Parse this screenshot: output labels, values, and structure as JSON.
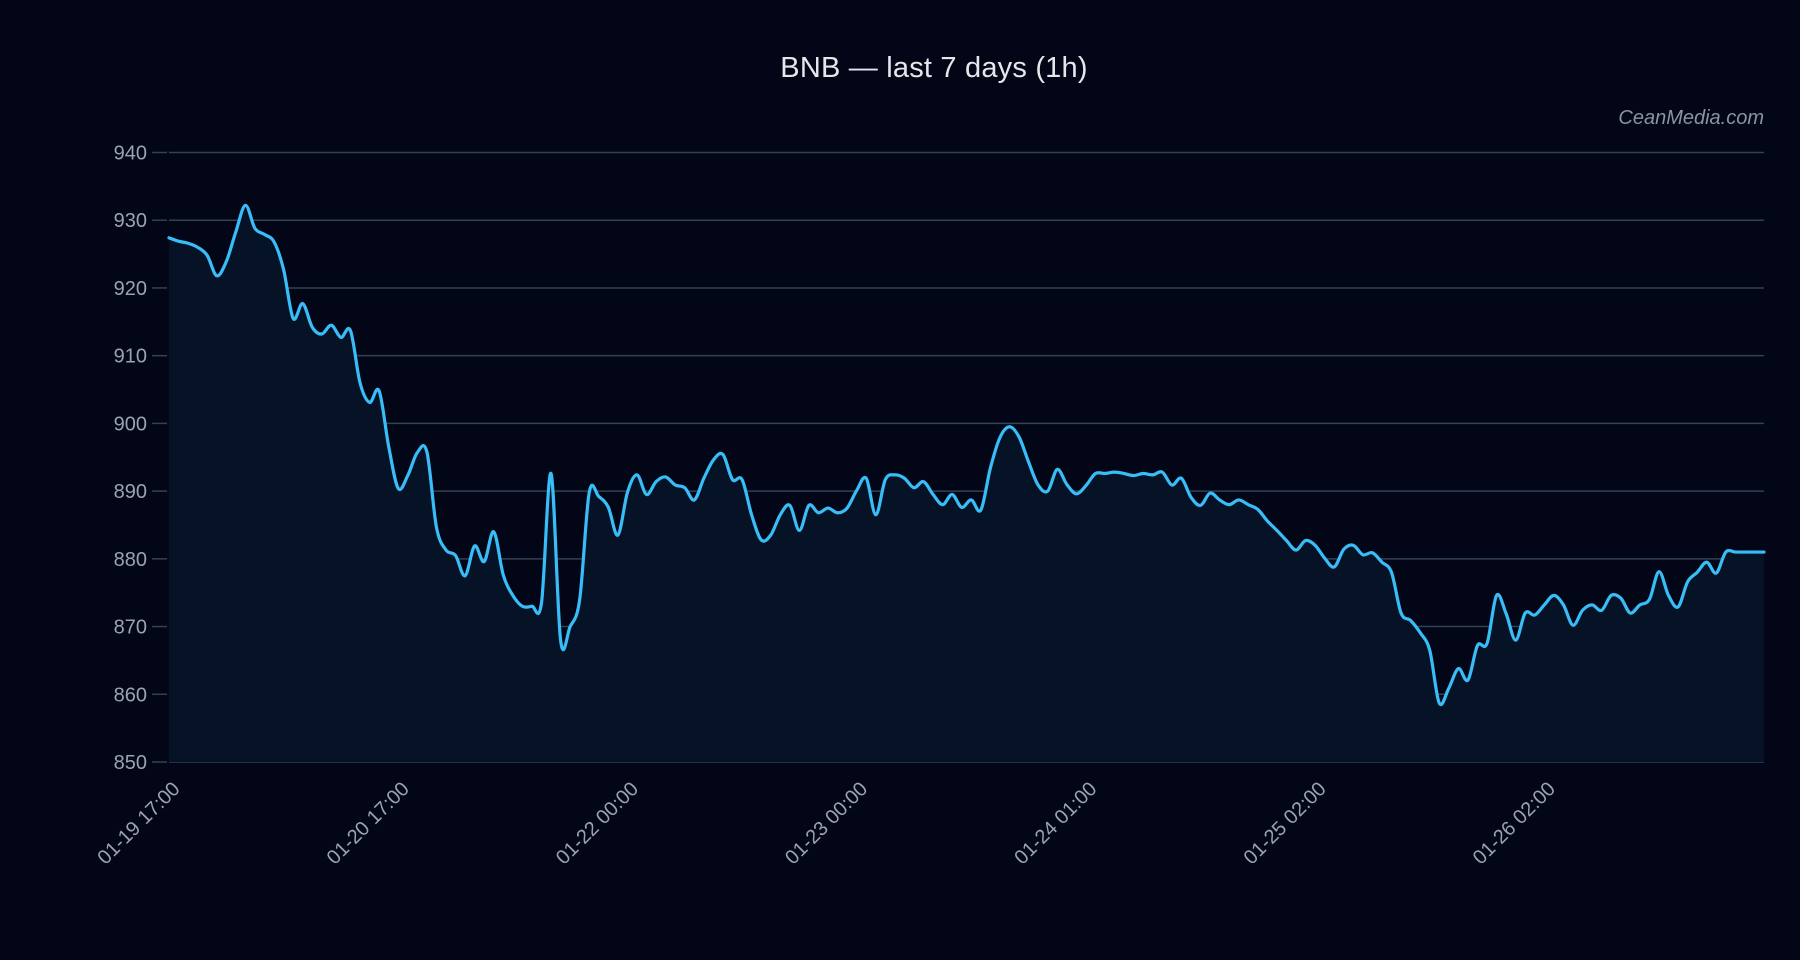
{
  "header": {
    "title": "BNB — last 7 days (1h)",
    "watermark": "CeanMedia.com"
  },
  "colors": {
    "background": "#020617",
    "plot_fill": "#061326",
    "line": "#38bdf8",
    "grid": "#334155",
    "tick_text": "#9ca3af",
    "title_text": "#e5e7eb"
  },
  "chart_data": {
    "type": "area",
    "title": "BNB — last 7 days (1h)",
    "xlabel": "",
    "ylabel": "",
    "ylim": [
      850,
      940
    ],
    "yticks": [
      850,
      860,
      870,
      880,
      890,
      900,
      910,
      920,
      930,
      940
    ],
    "grid": true,
    "legend": null,
    "x_tick_labels": [
      "01-19 17:00",
      "01-20 17:00",
      "01-22 00:00",
      "01-23 00:00",
      "01-24 01:00",
      "01-25 02:00",
      "01-26 02:00"
    ],
    "x_tick_indices": [
      0,
      24,
      48,
      72,
      96,
      120,
      144
    ],
    "n_points": 168,
    "series": [
      {
        "name": "BNB",
        "values": [
          927.4,
          926.9,
          926.6,
          926.0,
          924.8,
          921.8,
          923.9,
          928.3,
          932.2,
          928.8,
          927.9,
          926.8,
          922.7,
          915.5,
          917.7,
          914.2,
          913.2,
          914.5,
          912.7,
          913.7,
          906.0,
          903.1,
          904.8,
          896.6,
          890.4,
          892.3,
          895.7,
          895.8,
          884.7,
          881.3,
          880.5,
          877.5,
          881.9,
          879.6,
          884.0,
          877.6,
          874.6,
          873.0,
          873.0,
          873.5,
          892.6,
          868.0,
          870.0,
          874.0,
          889.8,
          889.2,
          887.6,
          883.5,
          889.8,
          892.4,
          889.5,
          891.4,
          892.1,
          890.9,
          890.5,
          888.7,
          891.9,
          894.6,
          895.4,
          891.7,
          891.7,
          886.5,
          882.8,
          883.5,
          886.5,
          887.9,
          884.2,
          887.9,
          886.8,
          887.5,
          886.8,
          887.5,
          890.1,
          891.9,
          886.5,
          891.7,
          892.4,
          891.9,
          890.5,
          891.4,
          889.5,
          888.0,
          889.5,
          887.6,
          888.7,
          887.2,
          893.4,
          897.9,
          899.5,
          898.0,
          894.3,
          890.9,
          890.0,
          893.2,
          891.0,
          889.6,
          890.8,
          892.6,
          892.6,
          892.8,
          892.6,
          892.3,
          892.6,
          892.4,
          892.8,
          890.9,
          891.9,
          889.1,
          887.9,
          889.7,
          888.7,
          888.0,
          888.7,
          888.0,
          887.3,
          885.6,
          884.2,
          882.7,
          881.3,
          882.7,
          882.0,
          880.1,
          878.8,
          881.4,
          882.0,
          880.6,
          880.9,
          879.5,
          878.0,
          872.0,
          870.9,
          869.1,
          866.5,
          858.7,
          860.9,
          863.8,
          862.1,
          867.2,
          867.5,
          874.6,
          871.9,
          868.0,
          872.0,
          871.7,
          873.2,
          874.6,
          873.2,
          870.2,
          872.4,
          873.2,
          872.4,
          874.6,
          874.2,
          872.0,
          873.2,
          874.0,
          878.1,
          874.6,
          872.9,
          876.6,
          878.0,
          879.5,
          877.9,
          881.0,
          881.0,
          881.0,
          881.0,
          881.0
        ]
      }
    ]
  }
}
